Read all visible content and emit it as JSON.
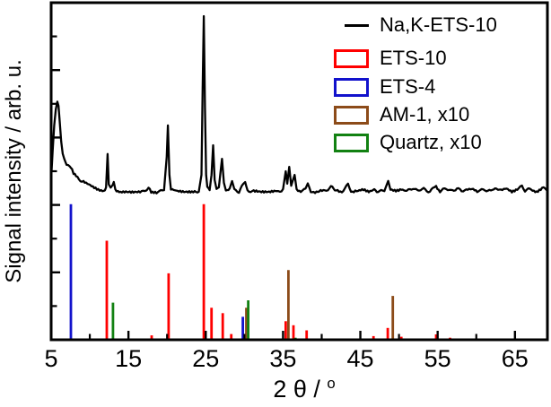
{
  "figure": {
    "background": "#ffffff",
    "frame_color": "#000000"
  },
  "axes": {
    "x_label_prefix": "2 θ / ",
    "x_label_degree": "o",
    "y_label": "Signal intensity / arb. u.",
    "x_tick_labels": [
      "5",
      "15",
      "25",
      "35",
      "45",
      "55",
      "65"
    ],
    "x_ticks_major": [
      15,
      25,
      35,
      45,
      55,
      65
    ],
    "x_ticks_minor": [
      10,
      20,
      30,
      40,
      50,
      60
    ],
    "y_ticks_major": [
      20,
      40,
      60,
      80
    ],
    "y_ticks_minor": [
      10,
      30,
      50,
      70,
      90
    ],
    "xlim": [
      5,
      69.2
    ],
    "ylim": [
      0,
      100
    ]
  },
  "legend": {
    "entries": [
      {
        "label": "Na,K-ETS-10",
        "swatch": "line",
        "color": "#000000"
      },
      {
        "label": "ETS-10",
        "swatch": "box",
        "color": "#ff0000"
      },
      {
        "label": "ETS-4",
        "swatch": "box",
        "color": "#1212cc"
      },
      {
        "label": "AM-1, x10",
        "swatch": "box",
        "color": "#8c4b19"
      },
      {
        "label": "Quartz, x10",
        "swatch": "box",
        "color": "#128112"
      }
    ]
  },
  "chart_data": {
    "type": "line",
    "subtype": "xrd-pattern-with-reference-sticks",
    "title": "",
    "xlabel": "2 θ / °",
    "ylabel": "Signal intensity / arb. u.",
    "xlim": [
      5,
      69.2
    ],
    "ylim": [
      0,
      100
    ],
    "grid": false,
    "legend_position": "top-right",
    "y_units": "arbitrary units (values are % of plot height)",
    "series": [
      {
        "name": "Na,K-ETS-10",
        "type": "line",
        "color": "#000000",
        "points": [
          [
            5.05,
            49.7
          ],
          [
            5.2,
            56.1
          ],
          [
            5.4,
            63.6
          ],
          [
            5.6,
            68.4
          ],
          [
            5.8,
            70.7
          ],
          [
            5.95,
            69.4
          ],
          [
            6.1,
            64.9
          ],
          [
            6.3,
            58.8
          ],
          [
            6.5,
            55.1
          ],
          [
            6.7,
            53.2
          ],
          [
            7.0,
            52.1
          ],
          [
            7.4,
            51.3
          ],
          [
            7.7,
            50.5
          ],
          [
            7.9,
            49.2
          ],
          [
            8.4,
            48.1
          ],
          [
            9.0,
            47.1
          ],
          [
            9.7,
            46.0
          ],
          [
            10.4,
            45.2
          ],
          [
            11.1,
            44.7
          ],
          [
            11.8,
            44.4
          ],
          [
            12.1,
            45.2
          ],
          [
            12.3,
            55.1
          ],
          [
            12.45,
            46.5
          ],
          [
            12.7,
            44.9
          ],
          [
            12.95,
            46.0
          ],
          [
            13.1,
            46.8
          ],
          [
            13.3,
            44.7
          ],
          [
            13.8,
            44.1
          ],
          [
            14.5,
            43.9
          ],
          [
            15.5,
            43.8
          ],
          [
            16.5,
            43.9
          ],
          [
            17.3,
            44.4
          ],
          [
            17.6,
            45.5
          ],
          [
            17.95,
            44.1
          ],
          [
            18.8,
            43.9
          ],
          [
            19.6,
            44.4
          ],
          [
            19.95,
            54.3
          ],
          [
            20.1,
            63.6
          ],
          [
            20.3,
            48.9
          ],
          [
            20.5,
            44.7
          ],
          [
            21.2,
            43.9
          ],
          [
            22.2,
            43.6
          ],
          [
            23.2,
            43.6
          ],
          [
            24.1,
            43.9
          ],
          [
            24.45,
            48.9
          ],
          [
            24.6,
            74.2
          ],
          [
            24.75,
            96.0
          ],
          [
            24.9,
            68.9
          ],
          [
            25.05,
            48.9
          ],
          [
            25.2,
            44.9
          ],
          [
            25.5,
            44.4
          ],
          [
            25.75,
            48.9
          ],
          [
            25.95,
            57.7
          ],
          [
            26.15,
            47.6
          ],
          [
            26.4,
            44.7
          ],
          [
            26.7,
            45.2
          ],
          [
            27.1,
            53.7
          ],
          [
            27.35,
            46.3
          ],
          [
            27.6,
            44.4
          ],
          [
            28.1,
            44.9
          ],
          [
            28.4,
            47.1
          ],
          [
            28.7,
            44.4
          ],
          [
            29.3,
            44.1
          ],
          [
            29.85,
            46.3
          ],
          [
            30.1,
            46.8
          ],
          [
            30.4,
            44.4
          ],
          [
            31.2,
            43.9
          ],
          [
            32.2,
            43.6
          ],
          [
            33.2,
            43.6
          ],
          [
            34.2,
            43.9
          ],
          [
            35.0,
            44.7
          ],
          [
            35.35,
            50.0
          ],
          [
            35.55,
            46.3
          ],
          [
            35.8,
            51.3
          ],
          [
            36.05,
            45.7
          ],
          [
            36.5,
            48.9
          ],
          [
            36.75,
            44.7
          ],
          [
            37.3,
            44.1
          ],
          [
            37.9,
            44.9
          ],
          [
            38.2,
            46.0
          ],
          [
            38.6,
            44.1
          ],
          [
            39.5,
            43.9
          ],
          [
            40.4,
            44.1
          ],
          [
            41.2,
            45.5
          ],
          [
            41.7,
            44.1
          ],
          [
            42.6,
            43.9
          ],
          [
            43.4,
            46.3
          ],
          [
            43.8,
            44.1
          ],
          [
            44.7,
            43.9
          ],
          [
            45.4,
            44.4
          ],
          [
            46.1,
            44.1
          ],
          [
            46.8,
            44.9
          ],
          [
            47.3,
            43.9
          ],
          [
            48.1,
            44.1
          ],
          [
            48.6,
            47.1
          ],
          [
            48.9,
            44.4
          ],
          [
            49.6,
            44.4
          ],
          [
            50.3,
            44.9
          ],
          [
            51.0,
            44.1
          ],
          [
            51.8,
            45.2
          ],
          [
            52.4,
            44.1
          ],
          [
            53.2,
            44.7
          ],
          [
            54.0,
            44.1
          ],
          [
            54.8,
            45.7
          ],
          [
            55.3,
            44.1
          ],
          [
            56.1,
            44.7
          ],
          [
            56.7,
            44.3
          ],
          [
            57.5,
            44.9
          ],
          [
            58.1,
            44.0
          ],
          [
            58.9,
            44.5
          ],
          [
            59.6,
            44.9
          ],
          [
            60.3,
            44.1
          ],
          [
            61.1,
            44.7
          ],
          [
            61.9,
            44.1
          ],
          [
            62.6,
            45.2
          ],
          [
            63.2,
            44.1
          ],
          [
            63.9,
            44.7
          ],
          [
            64.6,
            44.1
          ],
          [
            65.3,
            44.9
          ],
          [
            65.9,
            45.7
          ],
          [
            66.3,
            44.1
          ],
          [
            67.1,
            44.7
          ],
          [
            67.8,
            44.1
          ],
          [
            68.5,
            44.9
          ],
          [
            69.1,
            44.4
          ]
        ]
      },
      {
        "name": "ETS-10",
        "type": "sticks",
        "color": "#ff0000",
        "peaks": [
          [
            12.2,
            29.4
          ],
          [
            18.0,
            1.3
          ],
          [
            20.2,
            19.7
          ],
          [
            24.75,
            40.2
          ],
          [
            25.75,
            9.5
          ],
          [
            27.2,
            7.9
          ],
          [
            28.3,
            1.7
          ],
          [
            35.35,
            5.5
          ],
          [
            36.35,
            4.3
          ],
          [
            38.05,
            2.8
          ],
          [
            46.7,
            1.1
          ],
          [
            48.55,
            3.5
          ],
          [
            50.3,
            0.9
          ],
          [
            54.8,
            1.6
          ],
          [
            56.6,
            0.6
          ]
        ]
      },
      {
        "name": "ETS-4",
        "type": "sticks",
        "color": "#1212cc",
        "peaks": [
          [
            7.55,
            40.2
          ],
          [
            29.8,
            6.8
          ]
        ]
      },
      {
        "name": "AM-1, x10",
        "type": "sticks",
        "color": "#8c4b19",
        "scale": "x10",
        "peaks": [
          [
            30.25,
            9.5
          ],
          [
            35.7,
            20.7
          ],
          [
            49.2,
            13.0
          ]
        ]
      },
      {
        "name": "Quartz, x10",
        "type": "sticks",
        "color": "#128112",
        "scale": "x10",
        "peaks": [
          [
            13.0,
            11.0
          ],
          [
            30.5,
            11.7
          ],
          [
            36.6,
            0.6
          ]
        ]
      }
    ]
  }
}
